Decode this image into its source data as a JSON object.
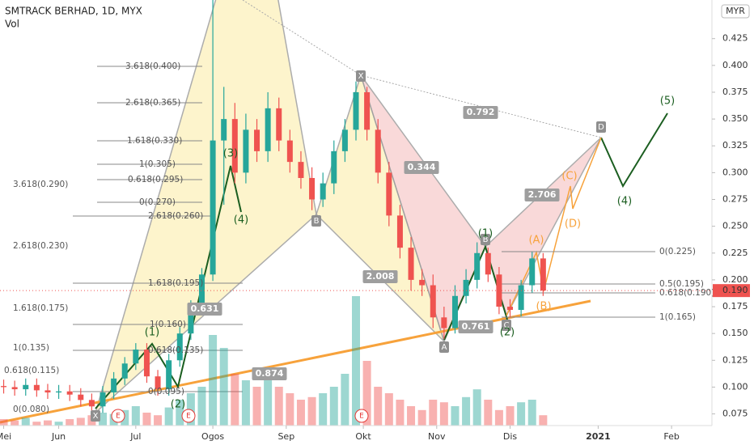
{
  "chart_data": {
    "type": "candlestick",
    "title": "SMTRACK BERHAD, 1D, MYX",
    "volume_label": "Vol",
    "currency": "MYR",
    "last_price_label": "0.190",
    "last_price": 0.19,
    "up_color": "#26a69a",
    "down_color": "#ef5350",
    "grid": false,
    "ylim": [
      0.046,
      0.461
    ],
    "yticks": [
      0.075,
      {
        "value": 0.1,
        "label": "0.100"
      },
      0.125,
      {
        "value": 0.15,
        "label": "0.150"
      },
      0.175,
      {
        "value": 0.2,
        "label": "0.200"
      },
      0.225,
      {
        "value": 0.25,
        "label": "0.250"
      },
      0.275,
      {
        "value": 0.3,
        "label": "0.300"
      },
      0.325,
      {
        "value": 0.35,
        "label": "0.350"
      },
      0.375,
      {
        "value": 0.4,
        "label": "0.400"
      },
      0.425
    ],
    "xlim": [
      -1,
      193
    ],
    "xticks": [
      {
        "value": 0,
        "label": "Mei"
      },
      {
        "value": 15,
        "label": "Jun"
      },
      {
        "value": 36,
        "label": "Jul"
      },
      {
        "value": 57,
        "label": "Ogos"
      },
      {
        "value": 77,
        "label": "Sep"
      },
      {
        "value": 98,
        "label": "Okt"
      },
      {
        "value": 118,
        "label": "Nov"
      },
      {
        "value": 138,
        "label": "Dis"
      },
      {
        "value": 162,
        "label": "2021"
      },
      {
        "value": 182,
        "label": "Feb"
      }
    ],
    "candles": {
      "x": [
        0,
        3,
        6,
        9,
        12,
        15,
        18,
        21,
        24,
        27,
        30,
        33,
        36,
        39,
        42,
        45,
        48,
        51,
        54,
        57,
        60,
        63,
        66,
        69,
        72,
        75,
        78,
        81,
        84,
        87,
        90,
        93,
        96,
        99,
        102,
        105,
        108,
        111,
        114,
        117,
        120,
        123,
        126,
        129,
        132,
        135,
        138,
        141,
        144,
        147
      ],
      "open": [
        0.101,
        0.1,
        0.098,
        0.102,
        0.097,
        0.095,
        0.096,
        0.093,
        0.088,
        0.082,
        0.095,
        0.108,
        0.122,
        0.135,
        0.11,
        0.098,
        0.125,
        0.15,
        0.175,
        0.205,
        0.33,
        0.35,
        0.3,
        0.34,
        0.32,
        0.36,
        0.33,
        0.31,
        0.295,
        0.275,
        0.29,
        0.32,
        0.34,
        0.375,
        0.34,
        0.3,
        0.26,
        0.23,
        0.2,
        0.195,
        0.165,
        0.155,
        0.185,
        0.2,
        0.225,
        0.205,
        0.175,
        0.172,
        0.195,
        0.22
      ],
      "high": [
        0.107,
        0.106,
        0.108,
        0.108,
        0.103,
        0.102,
        0.102,
        0.099,
        0.094,
        0.101,
        0.114,
        0.128,
        0.141,
        0.141,
        0.116,
        0.131,
        0.156,
        0.181,
        0.211,
        0.47,
        0.38,
        0.365,
        0.355,
        0.35,
        0.375,
        0.37,
        0.34,
        0.32,
        0.305,
        0.3,
        0.33,
        0.35,
        0.385,
        0.38,
        0.35,
        0.31,
        0.27,
        0.24,
        0.21,
        0.205,
        0.175,
        0.195,
        0.21,
        0.235,
        0.23,
        0.212,
        0.182,
        0.2,
        0.226,
        0.225
      ],
      "low": [
        0.094,
        0.092,
        0.092,
        0.091,
        0.089,
        0.089,
        0.087,
        0.082,
        0.076,
        0.076,
        0.089,
        0.102,
        0.116,
        0.104,
        0.092,
        0.092,
        0.119,
        0.144,
        0.169,
        0.199,
        0.27,
        0.29,
        0.29,
        0.31,
        0.31,
        0.32,
        0.3,
        0.285,
        0.265,
        0.268,
        0.28,
        0.31,
        0.33,
        0.33,
        0.29,
        0.25,
        0.22,
        0.19,
        0.185,
        0.155,
        0.145,
        0.15,
        0.178,
        0.192,
        0.198,
        0.168,
        0.165,
        0.166,
        0.188,
        0.185
      ],
      "close": [
        0.1,
        0.098,
        0.102,
        0.097,
        0.095,
        0.096,
        0.093,
        0.088,
        0.082,
        0.095,
        0.108,
        0.122,
        0.135,
        0.11,
        0.098,
        0.125,
        0.15,
        0.175,
        0.205,
        0.33,
        0.35,
        0.3,
        0.34,
        0.32,
        0.36,
        0.33,
        0.31,
        0.295,
        0.275,
        0.29,
        0.32,
        0.34,
        0.375,
        0.34,
        0.3,
        0.26,
        0.23,
        0.2,
        0.195,
        0.165,
        0.155,
        0.185,
        0.2,
        0.225,
        0.205,
        0.175,
        0.172,
        0.195,
        0.22,
        0.19
      ],
      "volume": [
        5,
        4,
        6,
        3,
        4,
        3,
        5,
        6,
        8,
        10,
        9,
        12,
        15,
        10,
        8,
        14,
        20,
        25,
        30,
        70,
        60,
        40,
        35,
        30,
        45,
        30,
        25,
        20,
        22,
        25,
        30,
        40,
        100,
        50,
        30,
        25,
        20,
        15,
        12,
        20,
        18,
        15,
        22,
        28,
        20,
        12,
        15,
        18,
        20,
        8
      ]
    },
    "annotations": {
      "fib": [
        "3.618(0.400)",
        "2.618(0.365)",
        "1.618(0.330)",
        "1(0.305)",
        "0.618(0.295)",
        "0(0.270)",
        "2.618(0.260)",
        "1.618(0.195)",
        "1(0.160)",
        "0.618(0.135)",
        "0(0.095)",
        "3.618(0.290)",
        "2.618(0.230)",
        "1.618(0.175)",
        "1(0.135)",
        "0.618(0.115)",
        "0(0.080)",
        "0(0.225)",
        "0.5(0.195)",
        "0.618(0.190)",
        "1(0.165)"
      ],
      "ratios": [
        "0.792",
        "0.344",
        "2.706",
        "2.008",
        "0.631",
        "0.761",
        "0.874"
      ],
      "points": [
        "X",
        "B",
        "X",
        "A",
        "B",
        "C",
        "D"
      ],
      "waves": [
        "(1)",
        "(2)",
        "(3)",
        "(4)",
        "(5)",
        "(4)",
        "(1)",
        "(2)"
      ],
      "abcd": [
        "(A)",
        "(B)",
        "(C)",
        "(D)"
      ],
      "events": [
        "E",
        "E",
        "E"
      ]
    }
  }
}
